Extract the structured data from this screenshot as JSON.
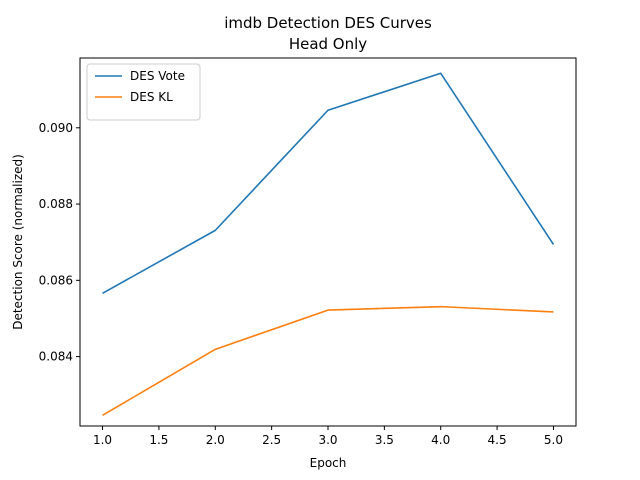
{
  "chart_data": {
    "type": "line",
    "title": [
      "imdb Detection DES Curves",
      "Head Only"
    ],
    "xlabel": "Epoch",
    "ylabel": "Detection Score (normalized)",
    "x": [
      1.0,
      2.0,
      3.0,
      4.0,
      5.0
    ],
    "xlim": [
      0.8,
      5.2
    ],
    "ylim": [
      0.08218,
      0.09183
    ],
    "xticks": [
      1.0,
      1.5,
      2.0,
      2.5,
      3.0,
      3.5,
      4.0,
      4.5,
      5.0
    ],
    "xtick_labels": [
      "1.0",
      "1.5",
      "2.0",
      "2.5",
      "3.0",
      "3.5",
      "4.0",
      "4.5",
      "5.0"
    ],
    "yticks": [
      0.084,
      0.086,
      0.088,
      0.09
    ],
    "ytick_labels": [
      "0.084",
      "0.086",
      "0.088",
      "0.090"
    ],
    "grid": false,
    "legend_position": "top-left",
    "series": [
      {
        "name": "DES Vote",
        "color": "#1f77b4",
        "values": [
          0.08566,
          0.08731,
          0.09046,
          0.09143,
          0.08694
        ]
      },
      {
        "name": "DES KL",
        "color": "#ff7f0e",
        "values": [
          0.08246,
          0.08419,
          0.08522,
          0.08531,
          0.08517
        ]
      }
    ]
  }
}
